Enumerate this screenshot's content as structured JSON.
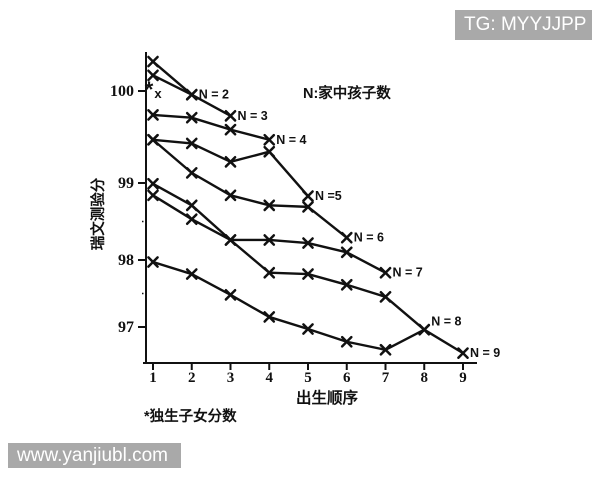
{
  "watermarks": {
    "top_right": "TG: MYYJJPP",
    "bottom_left": "www.yanjiubl.com"
  },
  "chart_data": {
    "type": "line",
    "title": "",
    "annotation": "N:家中孩子数",
    "footnote": "*独生子女分数",
    "xlabel": "出生顺序",
    "ylabel": "瑞文测验分",
    "x_ticks": [
      1,
      2,
      3,
      4,
      5,
      6,
      7,
      8,
      9
    ],
    "y_ticks": [
      100,
      99,
      98,
      97
    ],
    "y_minor_ticks": [
      98.5,
      97.5
    ],
    "ylim": [
      96.4,
      100.5
    ],
    "xlim": [
      0.8,
      9.5
    ],
    "grid": false,
    "legend_position": "inline-end-of-line",
    "marker": "x",
    "line_color": "#111111",
    "series": [
      {
        "name": "N=2",
        "label": "N = 2",
        "x": [
          1,
          2
        ],
        "values": [
          100.32,
          99.96
        ]
      },
      {
        "name": "N=3",
        "label": "N = 3",
        "x": [
          1,
          2,
          3
        ],
        "values": [
          100.17,
          99.96,
          99.73
        ]
      },
      {
        "name": "N=4",
        "label": "N = 4",
        "x": [
          1,
          2,
          3,
          4
        ],
        "values": [
          99.74,
          99.71,
          99.58,
          99.47
        ]
      },
      {
        "name": "N=5",
        "label": "N =5",
        "x": [
          1,
          2,
          3,
          4,
          5
        ],
        "values": [
          99.47,
          99.43,
          99.23,
          99.34,
          98.83
        ]
      },
      {
        "name": "N=6",
        "label": "N = 6",
        "x": [
          1,
          2,
          3,
          4,
          5,
          6
        ],
        "values": [
          99.47,
          99.11,
          98.84,
          98.71,
          98.69,
          98.29
        ]
      },
      {
        "name": "N=7",
        "label": "N = 7",
        "x": [
          1,
          2,
          3,
          4,
          5,
          6,
          7
        ],
        "values": [
          98.84,
          98.53,
          98.26,
          98.26,
          98.22,
          98.1,
          97.81
        ]
      },
      {
        "name": "N=8",
        "label": "N = 8",
        "x": [
          1,
          2,
          3,
          4,
          5,
          6,
          7,
          8
        ],
        "values": [
          98.99,
          98.71,
          98.26,
          97.81,
          97.79,
          97.63,
          97.45,
          96.96
        ]
      },
      {
        "name": "N=9",
        "label": "N = 9",
        "x": [
          1,
          2,
          3,
          4,
          5,
          6,
          7,
          8,
          9
        ],
        "values": [
          97.97,
          97.79,
          97.48,
          97.15,
          96.97,
          96.78,
          96.66,
          96.96,
          96.61
        ]
      }
    ],
    "only_child_point": {
      "x": 1,
      "value": 100.0,
      "marker_star": "*",
      "marker_x": "x",
      "note": "独生子女分数"
    }
  }
}
